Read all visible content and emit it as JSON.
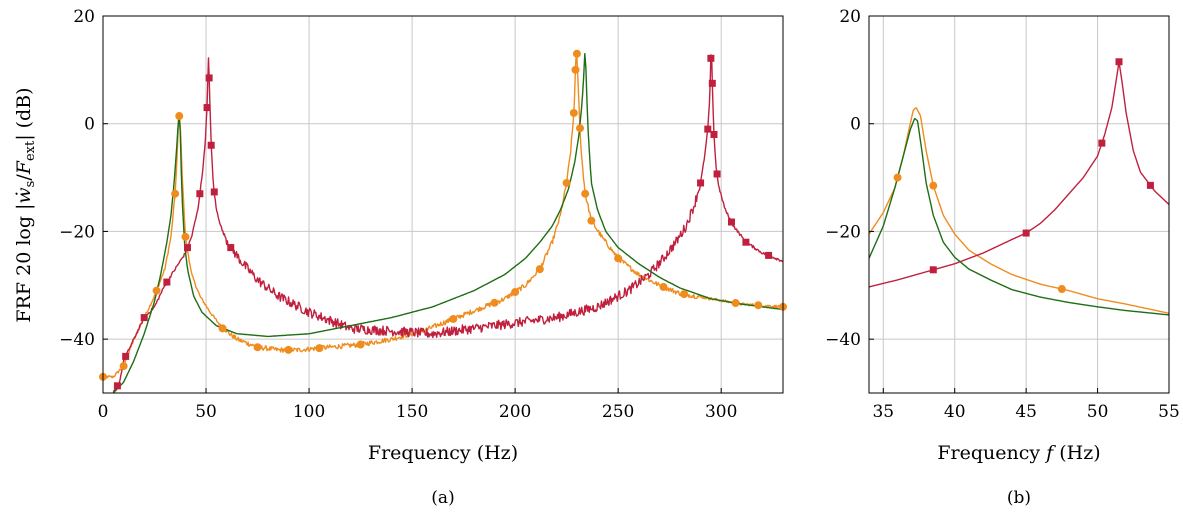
{
  "figure": {
    "ylabel": "FRF 20 log |ẇs/Fext| (dB)",
    "colors": {
      "orange": "#F08C1E",
      "crimson": "#C0203E",
      "green": "#1E6E14"
    }
  },
  "chart_data": [
    {
      "type": "line",
      "caption": "(a)",
      "xlabel": "Frequency (Hz)",
      "ylabel": "FRF 20 log |ẇs/Fext| (dB)",
      "xlim": [
        0,
        330
      ],
      "ylim": [
        -50,
        20
      ],
      "xticks": [
        "0",
        "50",
        "100",
        "150",
        "200",
        "250",
        "300"
      ],
      "yticks": [
        "20",
        "0",
        "−20",
        "−40"
      ],
      "grid": true,
      "series": [
        {
          "color": "#F08C1E",
          "marker": "circle",
          "noisy": true,
          "x": [
            0,
            5,
            10,
            15,
            20,
            25,
            30,
            33,
            35,
            36,
            36.8,
            37.5,
            38.5,
            40,
            43,
            47,
            52,
            58,
            65,
            75,
            85,
            95,
            110,
            125,
            140,
            155,
            165,
            175,
            185,
            195,
            205,
            212,
            218,
            222,
            225,
            227,
            228.5,
            229.5,
            230,
            230.8,
            232,
            234,
            237,
            242,
            250,
            260,
            270,
            280,
            295,
            310,
            330
          ],
          "y": [
            -47,
            -47,
            -45,
            -40,
            -36,
            -32,
            -27,
            -21,
            -13,
            -6,
            2,
            0,
            -10,
            -21,
            -28,
            -32,
            -35,
            -38,
            -40,
            -41.5,
            -42,
            -42,
            -41.5,
            -41,
            -40,
            -38.5,
            -37,
            -35.5,
            -34,
            -32.5,
            -30,
            -27,
            -22,
            -17,
            -11,
            -5,
            2,
            12,
            13,
            5,
            -5,
            -13,
            -18,
            -21,
            -25,
            -28,
            -30,
            -31.5,
            -32.5,
            -33.5,
            -34
          ]
        },
        {
          "color": "#C0203E",
          "marker": "square",
          "noisy": true,
          "x": [
            5,
            8,
            10,
            15,
            20,
            25,
            30,
            35,
            40,
            43,
            46,
            48,
            49.5,
            50.5,
            51.2,
            51.8,
            52.5,
            53.5,
            55,
            58,
            62,
            68,
            75,
            85,
            100,
            120,
            140,
            160,
            180,
            200,
            220,
            240,
            255,
            265,
            272,
            278,
            283,
            287,
            290,
            292,
            293.5,
            294.5,
            295.2,
            295.8,
            296.5,
            297.5,
            299,
            302,
            306,
            312,
            320,
            330
          ],
          "y": [
            -50,
            -48,
            -44,
            -40,
            -36,
            -34,
            -30,
            -27,
            -24,
            -21,
            -16,
            -10,
            -4,
            3,
            12,
            5,
            -4,
            -11,
            -16,
            -20,
            -23,
            -26,
            -29,
            -32,
            -35,
            -38,
            -38.5,
            -39,
            -38,
            -37,
            -36,
            -34,
            -31,
            -28,
            -25,
            -22,
            -19,
            -15,
            -11,
            -6,
            -1,
            5,
            15,
            6,
            -2,
            -8,
            -12,
            -16,
            -19,
            -22,
            -24,
            -25.5
          ]
        },
        {
          "color": "#1E6E14",
          "marker": "none",
          "noisy": false,
          "x": [
            5,
            10,
            15,
            20,
            25,
            28,
            31,
            33,
            34.5,
            35.5,
            36.3,
            36.9,
            37.3,
            37.7,
            38.3,
            39.5,
            41,
            44,
            48,
            55,
            65,
            80,
            100,
            120,
            140,
            160,
            180,
            195,
            205,
            212,
            218,
            222,
            226,
            229,
            231,
            232.5,
            233.5,
            234,
            234.6,
            235.5,
            237,
            240,
            244,
            250,
            260,
            270,
            280,
            295,
            310,
            330
          ],
          "y": [
            -50,
            -48,
            -44,
            -39,
            -33,
            -28,
            -22,
            -17,
            -11,
            -6,
            -1,
            1.5,
            1,
            -5,
            -13,
            -22,
            -27,
            -32,
            -35,
            -37.5,
            -39,
            -39.5,
            -39,
            -37.5,
            -36,
            -34,
            -31,
            -28,
            -25,
            -22,
            -19,
            -16,
            -12,
            -7,
            -2,
            4,
            10,
            15,
            7,
            -2,
            -11,
            -16,
            -20,
            -23,
            -26,
            -28.5,
            -30.5,
            -32.5,
            -33.5,
            -34.5
          ]
        }
      ]
    },
    {
      "type": "line",
      "caption": "(b)",
      "xlabel": "Frequency f (Hz)",
      "xlim": [
        34,
        55
      ],
      "ylim": [
        -50,
        20
      ],
      "xticks": [
        "35",
        "40",
        "45",
        "50",
        "55"
      ],
      "yticks": [
        "20",
        "0",
        "−20",
        "−40"
      ],
      "grid": true,
      "series": [
        {
          "color": "#F08C1E",
          "marker": "circle",
          "x": [
            34,
            35,
            35.8,
            36.4,
            36.8,
            37.1,
            37.3,
            37.6,
            38,
            38.5,
            39.2,
            40,
            41,
            42.5,
            44,
            46,
            48,
            50,
            52,
            55
          ],
          "y": [
            -20.5,
            -16.5,
            -12,
            -6,
            -1,
            2.5,
            3,
            1.5,
            -5,
            -11.5,
            -17,
            -20.5,
            -23.5,
            -26,
            -28,
            -29.8,
            -31,
            -32.5,
            -33.5,
            -35.2
          ],
          "markers_x": [
            36,
            38.5,
            47.5
          ]
        },
        {
          "color": "#C0203E",
          "marker": "square",
          "x": [
            34,
            36,
            38,
            40,
            42,
            44,
            45,
            46,
            47,
            48,
            49,
            50,
            50.5,
            51,
            51.3,
            51.5,
            51.7,
            52,
            52.5,
            53,
            54,
            55
          ],
          "y": [
            -30.3,
            -29,
            -27.5,
            -26,
            -24,
            -21.5,
            -20.3,
            -18.5,
            -16,
            -13,
            -10,
            -6,
            -2,
            3,
            8,
            11.5,
            8,
            2,
            -5,
            -9,
            -12.5,
            -15
          ],
          "markers_x": [
            38.5,
            45,
            50.3,
            51.5,
            53.7
          ]
        },
        {
          "color": "#1E6E14",
          "marker": "none",
          "x": [
            34,
            35,
            35.8,
            36.4,
            36.9,
            37.2,
            37.4,
            37.7,
            38,
            38.5,
            39.2,
            40,
            41,
            42.5,
            44,
            46,
            48,
            50,
            52,
            55
          ],
          "y": [
            -25,
            -19,
            -12,
            -6,
            -1,
            1,
            0.5,
            -5,
            -11,
            -17,
            -22,
            -24.8,
            -27,
            -29,
            -30.8,
            -32.2,
            -33.2,
            -34,
            -34.7,
            -35.5
          ]
        }
      ]
    }
  ]
}
